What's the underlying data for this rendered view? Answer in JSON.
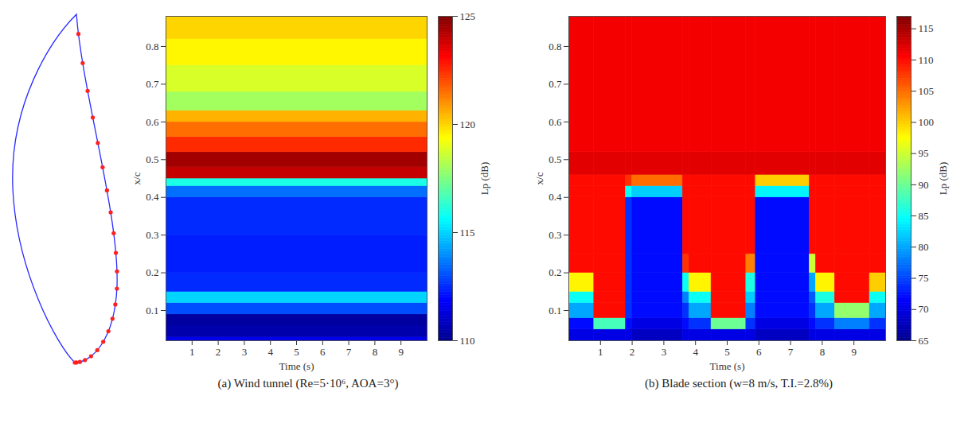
{
  "chart_data": [
    {
      "type": "heatmap",
      "caption": "(a) Wind tunnel (Re=5·10⁶, AOA=3°)",
      "xlabel": "Time (s)",
      "ylabel": "x/c",
      "xlim": [
        0,
        10
      ],
      "xticks": [
        1,
        2,
        3,
        4,
        5,
        6,
        7,
        8,
        9
      ],
      "ylim": [
        0.02,
        0.88
      ],
      "yticks": [
        0.1,
        0.2,
        0.3,
        0.4,
        0.5,
        0.6,
        0.7,
        0.8
      ],
      "time_edges": [
        0,
        10
      ],
      "xc_edges": [
        0.02,
        0.03,
        0.06,
        0.09,
        0.12,
        0.15,
        0.2,
        0.3,
        0.4,
        0.43,
        0.45,
        0.48,
        0.52,
        0.56,
        0.6,
        0.63,
        0.68,
        0.75,
        0.82,
        0.88
      ],
      "values": [
        [
          111.5
        ],
        [
          110.5
        ],
        [
          110.3
        ],
        [
          113
        ],
        [
          115
        ],
        [
          112.5
        ],
        [
          112.3
        ],
        [
          112.5
        ],
        [
          113.5
        ],
        [
          116
        ],
        [
          124
        ],
        [
          124.5
        ],
        [
          122.5
        ],
        [
          121.5
        ],
        [
          120.5
        ],
        [
          118
        ],
        [
          118.8
        ],
        [
          119.5
        ],
        [
          120
        ]
      ],
      "colorbar": {
        "label": "Lp (dB)",
        "range": [
          110,
          125
        ],
        "ticks": [
          110,
          115,
          120,
          125
        ]
      }
    },
    {
      "type": "heatmap",
      "caption": "(b) Blade section  (w=8 m/s, T.I.=2.8%)",
      "xlabel": "Time (s)",
      "ylabel": "x/c",
      "xlim": [
        0,
        10
      ],
      "xticks": [
        1,
        2,
        3,
        4,
        5,
        6,
        7,
        8,
        9
      ],
      "ylim": [
        0.02,
        0.88
      ],
      "yticks": [
        0.1,
        0.2,
        0.3,
        0.4,
        0.5,
        0.6,
        0.7,
        0.8
      ],
      "time_edges": [
        0,
        0.8,
        1.8,
        2.0,
        3.6,
        3.8,
        4.5,
        5.6,
        5.9,
        7.6,
        7.8,
        8.4,
        9.5,
        10
      ],
      "xc_edges": [
        0.02,
        0.05,
        0.08,
        0.12,
        0.15,
        0.2,
        0.25,
        0.4,
        0.43,
        0.46,
        0.52,
        0.88
      ],
      "values": [
        [
          70,
          70,
          70,
          68,
          70,
          70,
          70,
          70,
          68,
          70,
          70,
          70,
          70
        ],
        [
          72,
          88,
          72,
          70,
          72,
          74,
          90,
          74,
          70,
          72,
          74,
          78,
          74
        ],
        [
          80,
          110,
          74,
          72,
          74,
          80,
          110,
          78,
          72,
          74,
          80,
          92,
          80
        ],
        [
          85,
          110,
          74,
          72,
          78,
          85,
          110,
          82,
          72,
          76,
          86,
          110,
          85
        ],
        [
          98,
          110,
          74,
          72,
          85,
          98,
          110,
          86,
          72,
          80,
          98,
          110,
          100
        ],
        [
          110,
          110,
          74,
          72,
          108,
          110,
          110,
          104,
          72,
          95,
          110,
          110,
          110
        ],
        [
          110,
          110,
          74,
          72,
          110,
          110,
          110,
          110,
          72,
          110,
          110,
          110,
          110
        ],
        [
          110,
          110,
          85,
          82,
          110,
          110,
          110,
          110,
          84,
          110,
          110,
          110,
          110
        ],
        [
          110,
          110,
          108,
          105,
          110,
          110,
          110,
          110,
          100,
          110,
          110,
          110,
          110
        ],
        [
          112,
          112,
          112,
          112,
          112,
          112,
          112,
          112,
          112,
          112,
          112,
          112,
          112
        ],
        [
          111,
          111,
          111,
          111,
          111,
          111,
          111,
          111,
          111,
          111,
          111,
          111,
          111
        ]
      ],
      "colorbar": {
        "label": "Lp (dB)",
        "range": [
          65,
          117
        ],
        "ticks": [
          65,
          70,
          75,
          80,
          85,
          90,
          95,
          100,
          105,
          110,
          115
        ]
      }
    }
  ]
}
